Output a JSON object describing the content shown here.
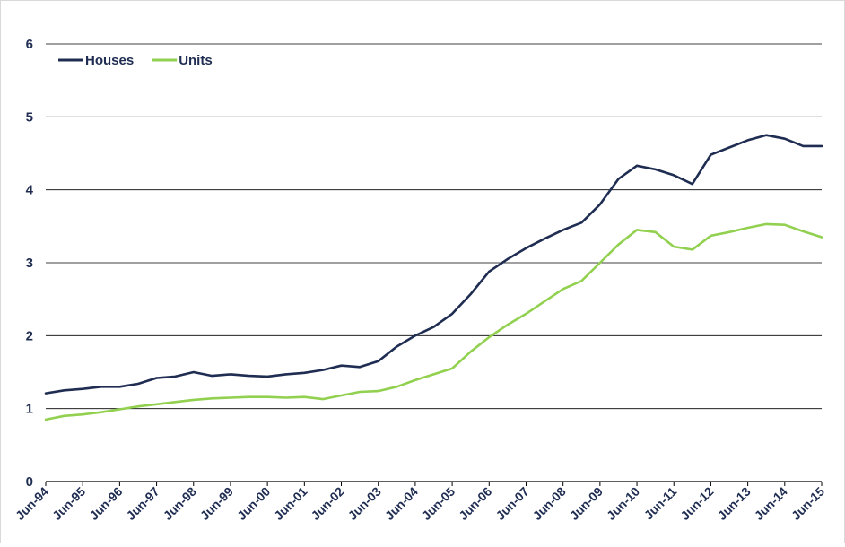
{
  "chart_data": {
    "type": "line",
    "title": "",
    "xlabel": "",
    "ylabel": "",
    "ylim": [
      0,
      6
    ],
    "yticks": [
      "0",
      "1",
      "2",
      "3",
      "4",
      "5",
      "6"
    ],
    "grid": true,
    "legend_position": "top-left",
    "x_tick_labels": [
      "Jun-94",
      "Jun-95",
      "Jun-96",
      "Jun-97",
      "Jun-98",
      "Jun-99",
      "Jun-00",
      "Jun-01",
      "Jun-02",
      "Jun-03",
      "Jun-04",
      "Jun-05",
      "Jun-06",
      "Jun-07",
      "Jun-08",
      "Jun-09",
      "Jun-10",
      "Jun-11",
      "Jun-12",
      "Jun-13",
      "Jun-14",
      "Jun-15"
    ],
    "series": [
      {
        "name": "Houses",
        "color": "#1f2d52",
        "points": [
          [
            "Jun-94",
            1.21
          ],
          [
            "Dec-94",
            1.25
          ],
          [
            "Jun-95",
            1.27
          ],
          [
            "Dec-95",
            1.3
          ],
          [
            "Jun-96",
            1.3
          ],
          [
            "Dec-96",
            1.34
          ],
          [
            "Jun-97",
            1.42
          ],
          [
            "Dec-97",
            1.44
          ],
          [
            "Jun-98",
            1.5
          ],
          [
            "Dec-98",
            1.45
          ],
          [
            "Jun-99",
            1.47
          ],
          [
            "Dec-99",
            1.45
          ],
          [
            "Jun-00",
            1.44
          ],
          [
            "Dec-00",
            1.47
          ],
          [
            "Jun-01",
            1.49
          ],
          [
            "Dec-01",
            1.53
          ],
          [
            "Jun-02",
            1.59
          ],
          [
            "Dec-02",
            1.57
          ],
          [
            "Jun-03",
            1.65
          ],
          [
            "Dec-03",
            1.85
          ],
          [
            "Jun-04",
            2.0
          ],
          [
            "Dec-04",
            2.12
          ],
          [
            "Jun-05",
            2.3
          ],
          [
            "Dec-05",
            2.57
          ],
          [
            "Jun-06",
            2.88
          ],
          [
            "Dec-06",
            3.05
          ],
          [
            "Jun-07",
            3.2
          ],
          [
            "Dec-07",
            3.33
          ],
          [
            "Jun-08",
            3.45
          ],
          [
            "Dec-08",
            3.55
          ],
          [
            "Jun-09",
            3.8
          ],
          [
            "Dec-09",
            4.15
          ],
          [
            "Jun-10",
            4.33
          ],
          [
            "Dec-10",
            4.28
          ],
          [
            "Jun-11",
            4.2
          ],
          [
            "Dec-11",
            4.08
          ],
          [
            "Jun-12",
            4.48
          ],
          [
            "Dec-12",
            4.58
          ],
          [
            "Jun-13",
            4.68
          ],
          [
            "Dec-13",
            4.75
          ],
          [
            "Jun-14",
            4.7
          ],
          [
            "Dec-14",
            4.6
          ],
          [
            "Jun-15",
            4.6
          ]
        ]
      },
      {
        "name": "Units",
        "color": "#92d050",
        "points": [
          [
            "Jun-94",
            0.85
          ],
          [
            "Dec-94",
            0.9
          ],
          [
            "Jun-95",
            0.92
          ],
          [
            "Dec-95",
            0.95
          ],
          [
            "Jun-96",
            0.99
          ],
          [
            "Dec-96",
            1.03
          ],
          [
            "Jun-97",
            1.06
          ],
          [
            "Dec-97",
            1.09
          ],
          [
            "Jun-98",
            1.12
          ],
          [
            "Dec-98",
            1.14
          ],
          [
            "Jun-99",
            1.15
          ],
          [
            "Dec-99",
            1.16
          ],
          [
            "Jun-00",
            1.16
          ],
          [
            "Dec-00",
            1.15
          ],
          [
            "Jun-01",
            1.16
          ],
          [
            "Dec-01",
            1.13
          ],
          [
            "Jun-02",
            1.18
          ],
          [
            "Dec-02",
            1.23
          ],
          [
            "Jun-03",
            1.24
          ],
          [
            "Dec-03",
            1.3
          ],
          [
            "Jun-04",
            1.39
          ],
          [
            "Dec-04",
            1.47
          ],
          [
            "Jun-05",
            1.55
          ],
          [
            "Dec-05",
            1.78
          ],
          [
            "Jun-06",
            1.98
          ],
          [
            "Dec-06",
            2.15
          ],
          [
            "Jun-07",
            2.3
          ],
          [
            "Dec-07",
            2.47
          ],
          [
            "Jun-08",
            2.64
          ],
          [
            "Dec-08",
            2.75
          ],
          [
            "Jun-09",
            3.0
          ],
          [
            "Dec-09",
            3.25
          ],
          [
            "Jun-10",
            3.45
          ],
          [
            "Dec-10",
            3.42
          ],
          [
            "Jun-11",
            3.22
          ],
          [
            "Dec-11",
            3.18
          ],
          [
            "Jun-12",
            3.37
          ],
          [
            "Dec-12",
            3.42
          ],
          [
            "Jun-13",
            3.48
          ],
          [
            "Dec-13",
            3.53
          ],
          [
            "Jun-14",
            3.52
          ],
          [
            "Dec-14",
            3.43
          ],
          [
            "Jun-15",
            3.35
          ]
        ]
      }
    ]
  }
}
